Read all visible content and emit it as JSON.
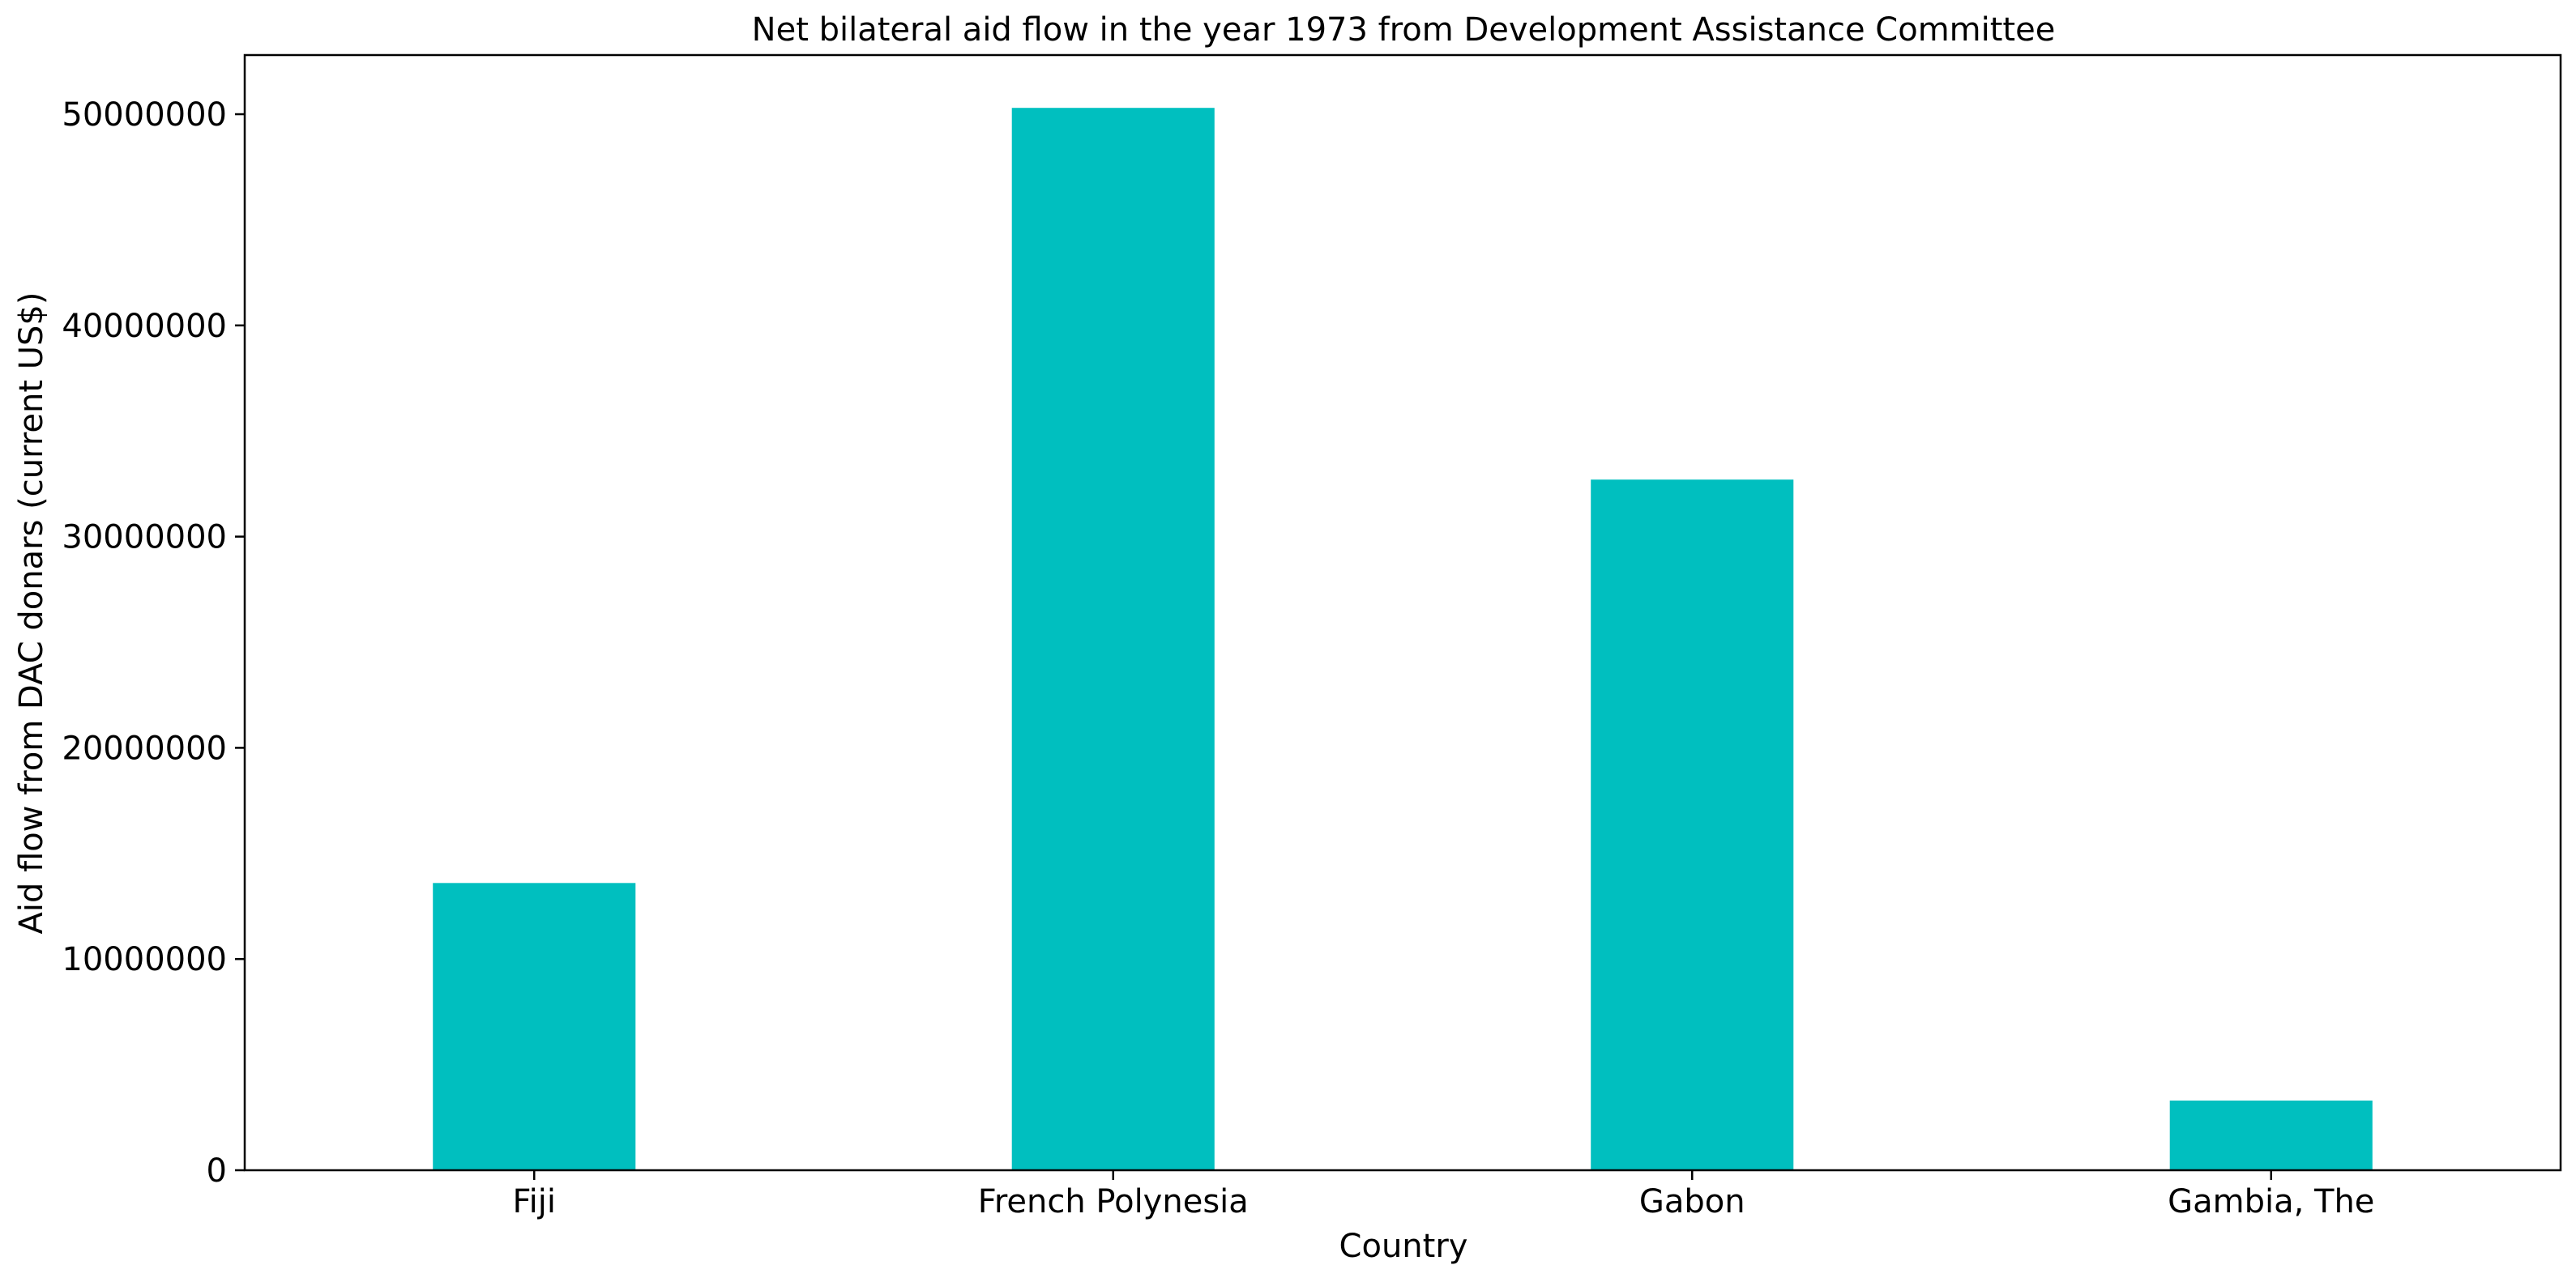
{
  "chart_data": {
    "type": "bar",
    "title": "Net bilateral aid flow in the year 1973 from Development Assistance Committee",
    "xlabel": "Country",
    "ylabel": "Aid flow from DAC donars (current US$)",
    "categories": [
      "Fiji",
      "French Polynesia",
      "Gabon",
      "Gambia, The"
    ],
    "values": [
      13600000,
      50300000,
      32700000,
      3300000
    ],
    "ylim": [
      0,
      52800000
    ],
    "yticks": [
      0,
      10000000,
      20000000,
      30000000,
      40000000,
      50000000
    ],
    "ytick_labels": [
      "0",
      "10000000",
      "20000000",
      "30000000",
      "40000000",
      "50000000"
    ],
    "grid": false,
    "bar_color": "#00bfbf"
  }
}
